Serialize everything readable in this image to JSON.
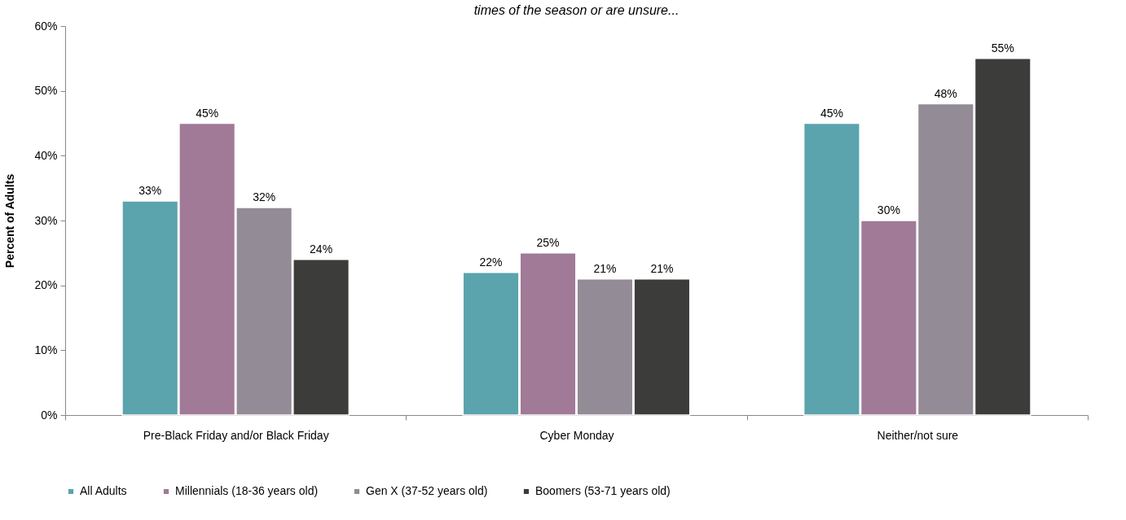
{
  "chart_data": {
    "type": "bar",
    "subtitle": "times of the season or are unsure...",
    "ylabel": "Percent of Adults",
    "categories": [
      "Pre-Black Friday and/or Black Friday",
      "Cyber Monday",
      "Neither/not sure"
    ],
    "series": [
      {
        "name": "All Adults",
        "color": "#5ba3ad",
        "values": [
          33,
          22,
          45
        ],
        "value_labels": [
          "33%",
          "22%",
          "45%"
        ]
      },
      {
        "name": "Millennials (18-36 years old)",
        "color": "#a07a96",
        "values": [
          45,
          25,
          30
        ],
        "value_labels": [
          "45%",
          "25%",
          "30%"
        ]
      },
      {
        "name": "Gen X (37-52 years old)",
        "color": "#938b96",
        "values": [
          32,
          21,
          48
        ],
        "value_labels": [
          "32%",
          "21%",
          "48%"
        ]
      },
      {
        "name": "Boomers (53-71 years old)",
        "color": "#3c3d3b",
        "values": [
          24,
          21,
          55
        ],
        "value_labels": [
          "24%",
          "21%",
          "55%"
        ]
      }
    ],
    "ylim": [
      0,
      60
    ],
    "yticks": [
      {
        "value": 0,
        "label": "0%"
      },
      {
        "value": 10,
        "label": "10%"
      },
      {
        "value": 20,
        "label": "20%"
      },
      {
        "value": 30,
        "label": "30%"
      },
      {
        "value": 40,
        "label": "40%"
      },
      {
        "value": 50,
        "label": "50%"
      },
      {
        "value": 60,
        "label": "60%"
      }
    ],
    "grid": false,
    "legend": "bottom"
  }
}
